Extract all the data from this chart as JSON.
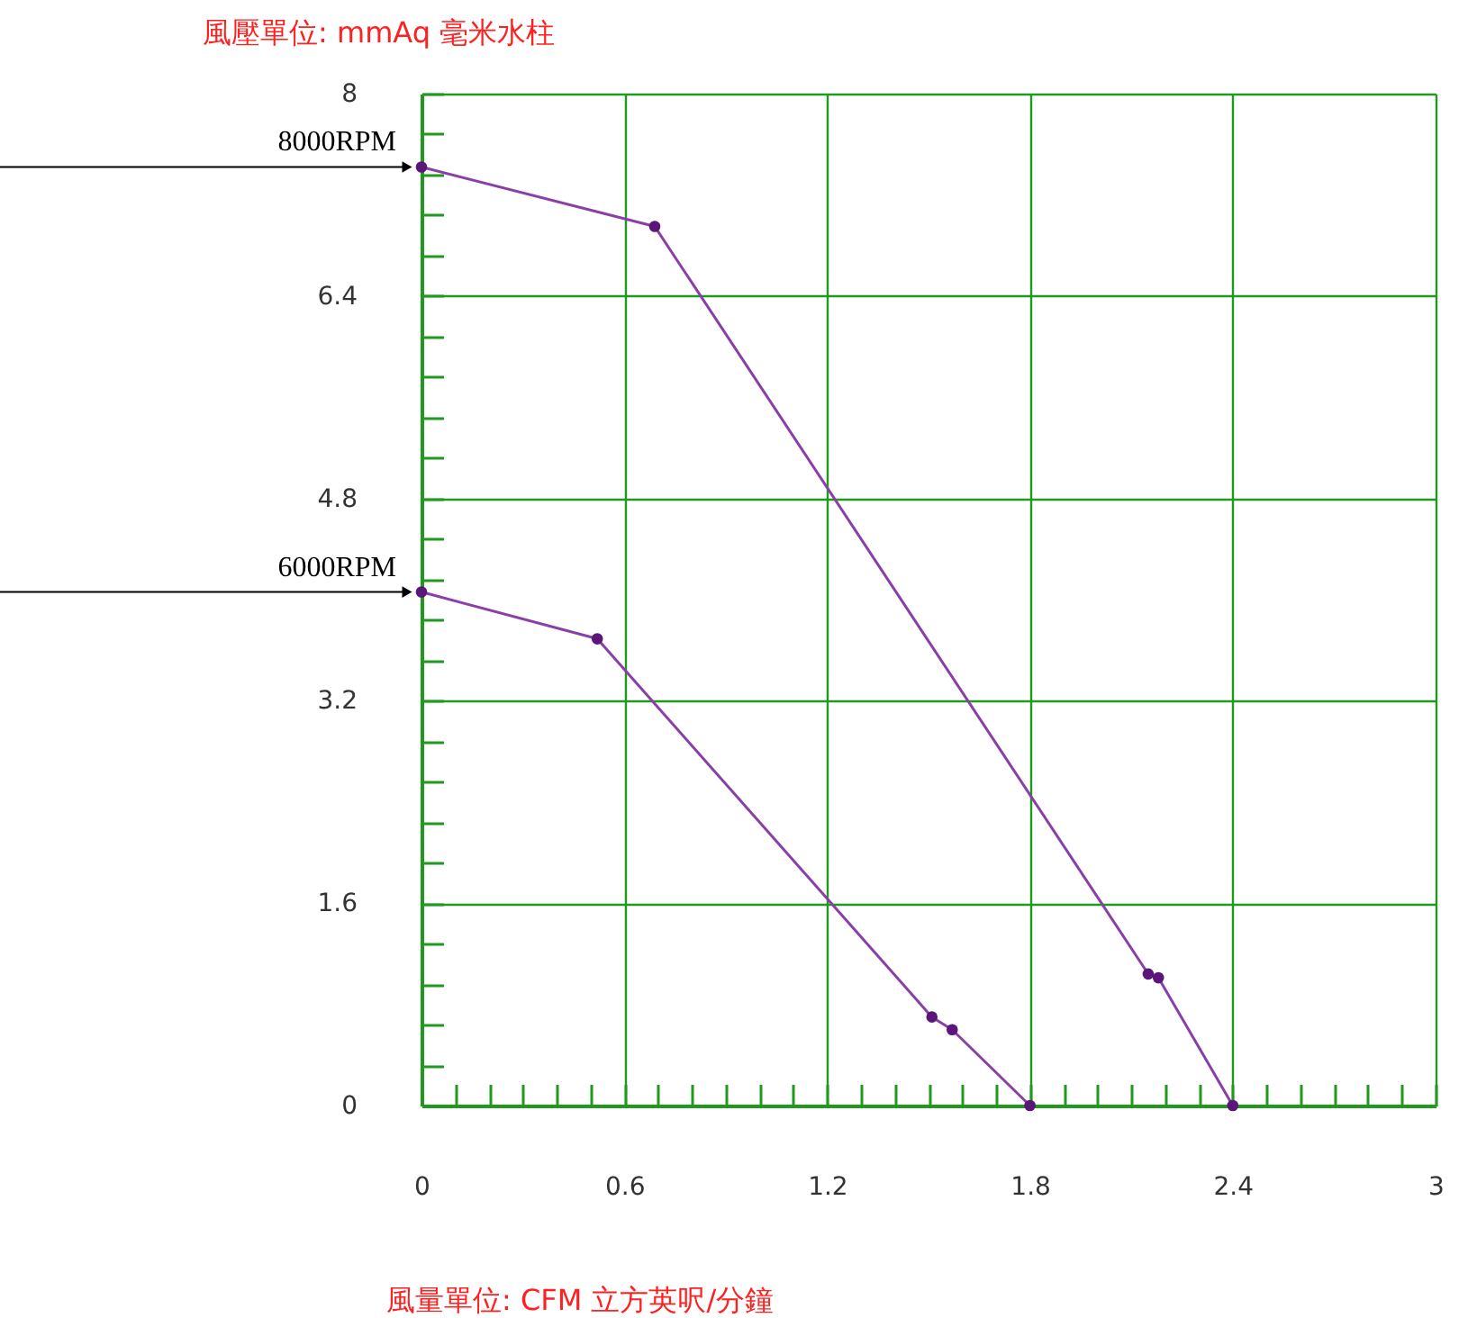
{
  "chart_data": {
    "type": "line",
    "xlabel": "風量單位:     CFM 立方英呎/分鐘",
    "ylabel": "風壓單位:  mmAq 毫米水柱",
    "xlim": [
      0,
      3
    ],
    "ylim": [
      0,
      8
    ],
    "xticks": [
      0,
      {
        "value": 0.1,
        "label": null
      },
      {
        "value": 0.2,
        "label": null
      },
      {
        "value": 0.3,
        "label": null
      },
      {
        "value": 0.4,
        "label": null
      },
      {
        "value": 0.5,
        "label": null
      },
      0.6,
      {
        "value": 0.7,
        "label": null
      },
      {
        "value": 0.8,
        "label": null
      },
      {
        "value": 0.9,
        "label": null
      },
      {
        "value": 1.0,
        "label": null
      },
      {
        "value": 1.1,
        "label": null
      },
      1.2,
      {
        "value": 1.3,
        "label": null
      },
      {
        "value": 1.4,
        "label": null
      },
      {
        "value": 1.5,
        "label": null
      },
      {
        "value": 1.6,
        "label": null
      },
      {
        "value": 1.7,
        "label": null
      },
      1.8,
      {
        "value": 1.9,
        "label": null
      },
      {
        "value": 2.0,
        "label": null
      },
      {
        "value": 2.1,
        "label": null
      },
      {
        "value": 2.2,
        "label": null
      },
      {
        "value": 2.3,
        "label": null
      },
      2.4,
      {
        "value": 2.5,
        "label": null
      },
      {
        "value": 2.6,
        "label": null
      },
      {
        "value": 2.7,
        "label": null
      },
      {
        "value": 2.8,
        "label": null
      },
      {
        "value": 2.9,
        "label": null
      },
      3
    ],
    "yticks": [
      0,
      {
        "value": 0.32,
        "label": null
      },
      {
        "value": 0.64,
        "label": null
      },
      {
        "value": 0.96,
        "label": null
      },
      {
        "value": 1.28,
        "label": null
      },
      1.6,
      {
        "value": 1.92,
        "label": null
      },
      {
        "value": 2.24,
        "label": null
      },
      {
        "value": 2.56,
        "label": null
      },
      {
        "value": 2.88,
        "label": null
      },
      3.2,
      {
        "value": 3.52,
        "label": null
      },
      {
        "value": 3.84,
        "label": null
      },
      {
        "value": 4.16,
        "label": null
      },
      {
        "value": 4.48,
        "label": null
      },
      4.8,
      {
        "value": 5.12,
        "label": null
      },
      {
        "value": 5.44,
        "label": null
      },
      {
        "value": 5.76,
        "label": null
      },
      {
        "value": 6.08,
        "label": null
      },
      6.4,
      {
        "value": 6.72,
        "label": null
      },
      {
        "value": 7.04,
        "label": null
      },
      {
        "value": 7.36,
        "label": null
      },
      {
        "value": 7.68,
        "label": null
      },
      8
    ],
    "grid": true,
    "legend": false,
    "marker": "circle",
    "line_style": "solid",
    "series": [
      {
        "name": "8000RPM",
        "color": "#8a3fa8",
        "x": [
          0,
          0.69,
          2.15,
          2.18,
          2.4
        ],
        "values": [
          7.42,
          6.95,
          1.04,
          1.01,
          0
        ]
      },
      {
        "name": "6000RPM",
        "color": "#8a3fa8",
        "x": [
          0,
          0.52,
          1.51,
          1.57,
          1.8
        ],
        "values": [
          4.06,
          3.69,
          0.7,
          0.6,
          0
        ]
      }
    ]
  }
}
